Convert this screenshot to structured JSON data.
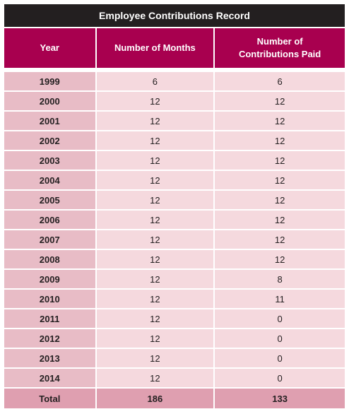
{
  "title": "Employee Contributions Record",
  "headers": {
    "year": "Year",
    "months": "Number of Months",
    "contrib_line1": "Number of",
    "contrib_line2": "Contributions Paid"
  },
  "rows": [
    {
      "year": "1999",
      "months": "6",
      "paid": "6"
    },
    {
      "year": "2000",
      "months": "12",
      "paid": "12"
    },
    {
      "year": "2001",
      "months": "12",
      "paid": "12"
    },
    {
      "year": "2002",
      "months": "12",
      "paid": "12"
    },
    {
      "year": "2003",
      "months": "12",
      "paid": "12"
    },
    {
      "year": "2004",
      "months": "12",
      "paid": "12"
    },
    {
      "year": "2005",
      "months": "12",
      "paid": "12"
    },
    {
      "year": "2006",
      "months": "12",
      "paid": "12"
    },
    {
      "year": "2007",
      "months": "12",
      "paid": "12"
    },
    {
      "year": "2008",
      "months": "12",
      "paid": "12"
    },
    {
      "year": "2009",
      "months": "12",
      "paid": "8"
    },
    {
      "year": "2010",
      "months": "12",
      "paid": "11"
    },
    {
      "year": "2011",
      "months": "12",
      "paid": "0"
    },
    {
      "year": "2012",
      "months": "12",
      "paid": "0"
    },
    {
      "year": "2013",
      "months": "12",
      "paid": "0"
    },
    {
      "year": "2014",
      "months": "12",
      "paid": "0"
    }
  ],
  "total": {
    "label": "Total",
    "months": "186",
    "paid": "133"
  },
  "colors": {
    "title_bg": "#231f20",
    "header_bg": "#a8004f",
    "year_col_bg": "#e8bcc6",
    "value_bg": "#f5d9de",
    "total_bg": "#df9fb0"
  }
}
